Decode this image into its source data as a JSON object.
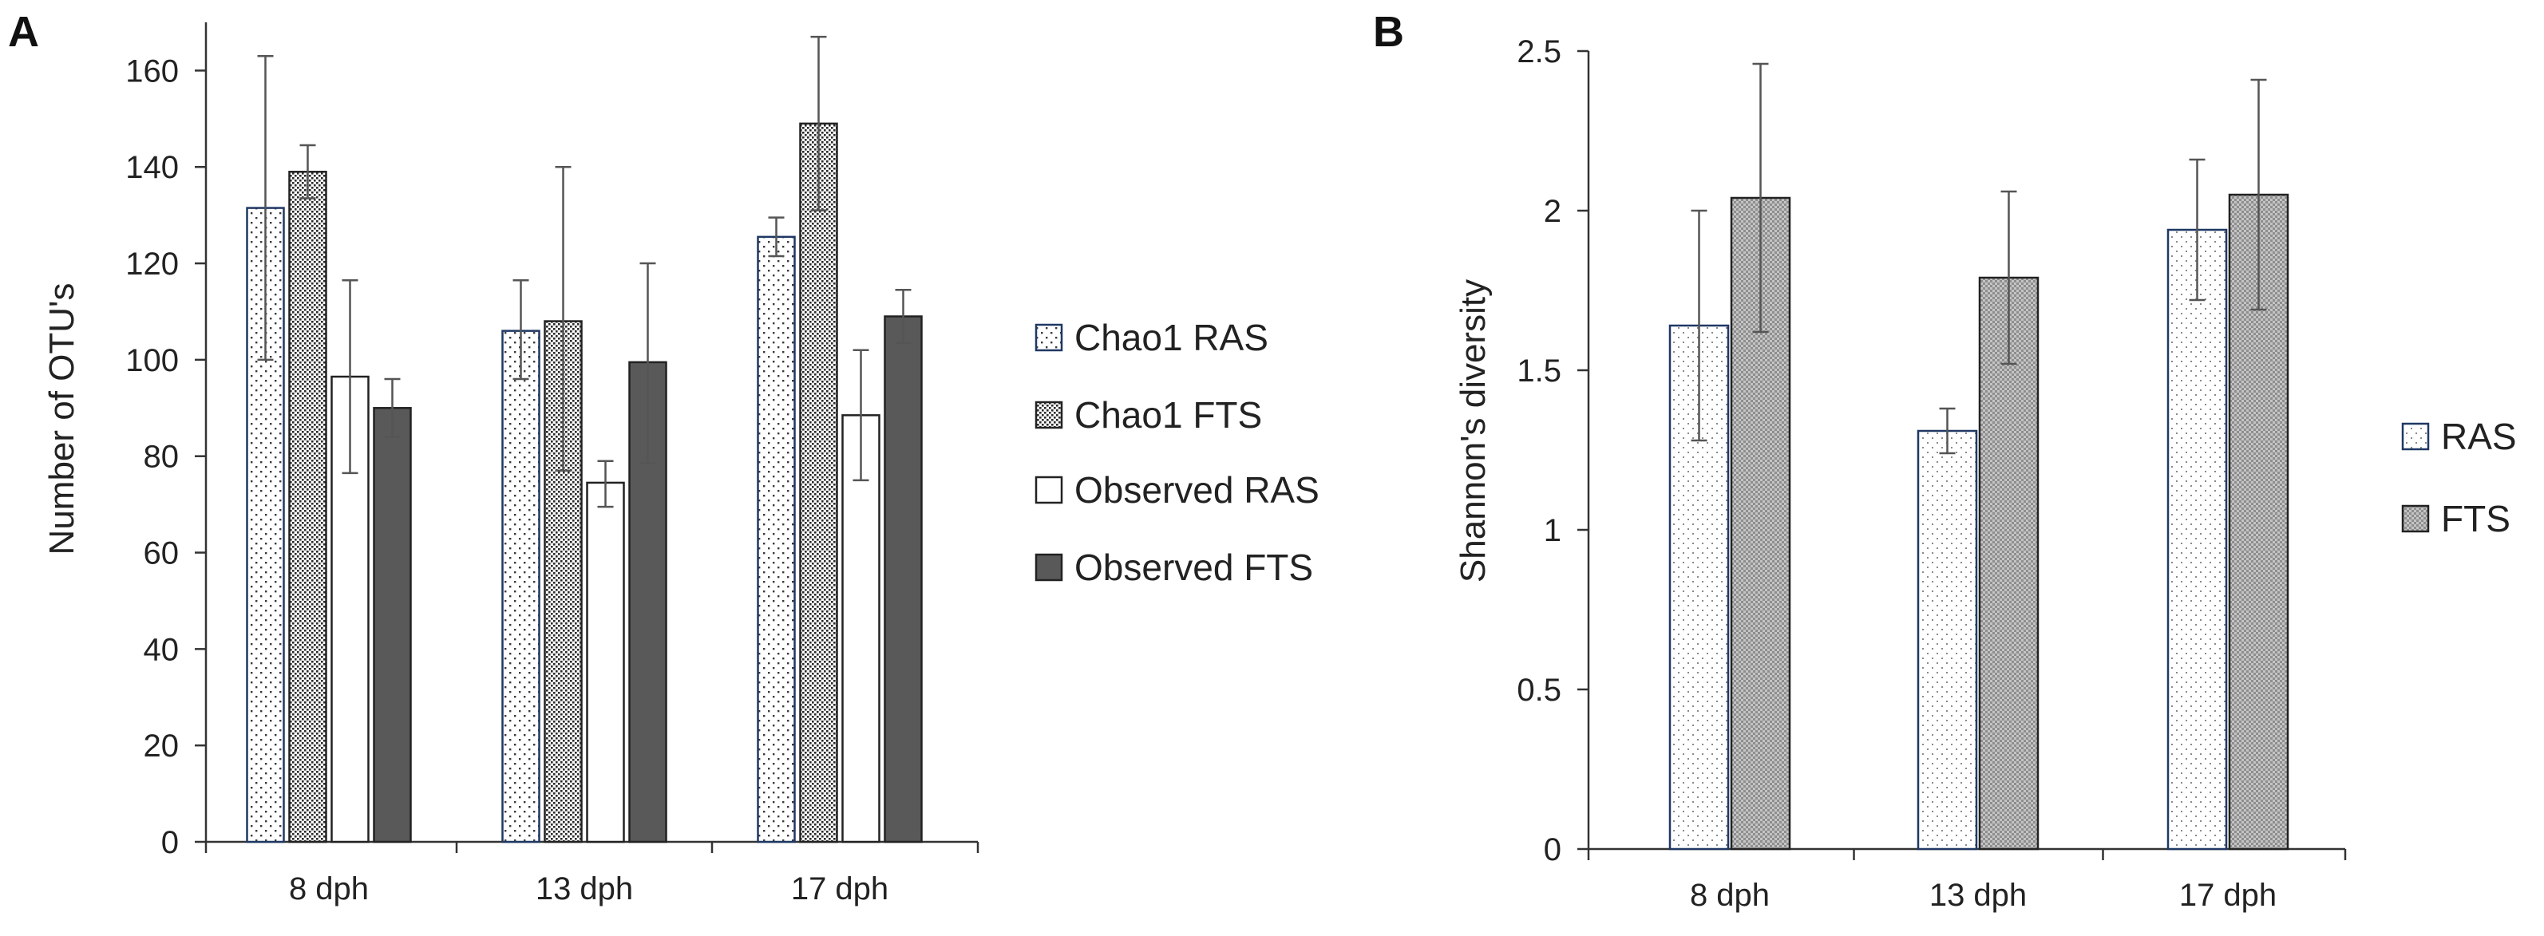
{
  "colors": {
    "ras_outline": "#1f3864",
    "bar_outline": "#222222",
    "dark_fill": "#595959",
    "error_bar": "#555555",
    "axis": "#333333"
  },
  "chart_data": [
    {
      "panel": "A",
      "type": "bar",
      "title": "",
      "xlabel": "",
      "ylabel": "Number of OTU's",
      "ylim": [
        0,
        170
      ],
      "yticks": [
        0,
        20,
        40,
        60,
        80,
        100,
        120,
        140,
        160
      ],
      "grid": false,
      "legend_position": "right",
      "categories": [
        "8 dph",
        "13 dph",
        "17 dph"
      ],
      "series": [
        {
          "name": "Chao1 RAS",
          "pattern": "dots-sparse",
          "values": [
            131.5,
            106,
            125.5
          ],
          "errors_low": [
            31.5,
            10,
            4
          ],
          "errors_high": [
            31.5,
            10.5,
            4
          ]
        },
        {
          "name": "Chao1 FTS",
          "pattern": "dots-dense",
          "values": [
            139,
            108,
            149
          ],
          "errors_low": [
            5.5,
            31,
            18
          ],
          "errors_high": [
            5.5,
            32,
            18
          ]
        },
        {
          "name": "Observed RAS",
          "pattern": "white",
          "values": [
            96.5,
            74.5,
            88.5
          ],
          "errors_low": [
            20,
            5,
            13.5
          ],
          "errors_high": [
            20,
            4.5,
            13.5
          ]
        },
        {
          "name": "Observed FTS",
          "pattern": "dark",
          "values": [
            90,
            99.5,
            109
          ],
          "errors_low": [
            6,
            21,
            5.5
          ],
          "errors_high": [
            6,
            20.5,
            5.5
          ]
        }
      ]
    },
    {
      "panel": "B",
      "type": "bar",
      "title": "",
      "xlabel": "",
      "ylabel": "Shannon's diversity",
      "ylim": [
        0,
        2.5
      ],
      "yticks": [
        "0",
        "0.5",
        "1",
        "1.5",
        "2",
        "2.5"
      ],
      "grid": false,
      "legend_position": "right",
      "categories": [
        "8 dph",
        "13 dph",
        "17 dph"
      ],
      "series": [
        {
          "name": "RAS",
          "pattern": "dots-light",
          "values": [
            1.64,
            1.31,
            1.94
          ],
          "errors_low": [
            0.36,
            0.07,
            0.22
          ],
          "errors_high": [
            0.36,
            0.07,
            0.22
          ]
        },
        {
          "name": "FTS",
          "pattern": "checker",
          "values": [
            2.04,
            1.79,
            2.05
          ],
          "errors_low": [
            0.42,
            0.27,
            0.36
          ],
          "errors_high": [
            0.42,
            0.27,
            0.36
          ]
        }
      ]
    }
  ]
}
